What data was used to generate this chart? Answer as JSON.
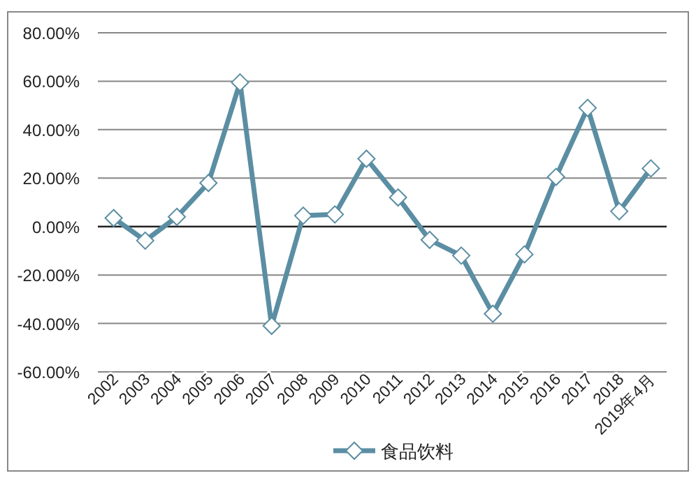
{
  "chart_data": {
    "type": "line",
    "categories": [
      "2002",
      "2003",
      "2004",
      "2005",
      "2006",
      "2007",
      "2008",
      "2009",
      "2010",
      "2011",
      "2012",
      "2013",
      "2014",
      "2015",
      "2016",
      "2017",
      "2018",
      "2019年4月"
    ],
    "series": [
      {
        "name": "食品饮料",
        "color": "#5b8ea3",
        "values": [
          3.5,
          -5.8,
          4,
          18,
          59.5,
          -41,
          4.5,
          5,
          28,
          12,
          -5.5,
          -12,
          -36,
          -11.5,
          20.5,
          49,
          6.3,
          24
        ]
      }
    ],
    "ylim": [
      -60,
      80
    ],
    "yticks": [
      {
        "value": -60,
        "label": "-60.00%"
      },
      {
        "value": -40,
        "label": "-40.00%"
      },
      {
        "value": -20,
        "label": "-20.00%"
      },
      {
        "value": 0,
        "label": "0.00%"
      },
      {
        "value": 20,
        "label": "20.00%"
      },
      {
        "value": 40,
        "label": "40.00%"
      },
      {
        "value": 60,
        "label": "60.00%"
      },
      {
        "value": 80,
        "label": "80.00%"
      }
    ],
    "grid": "y",
    "legend": "bottom",
    "marker": "diamond",
    "line_style": "solid"
  }
}
